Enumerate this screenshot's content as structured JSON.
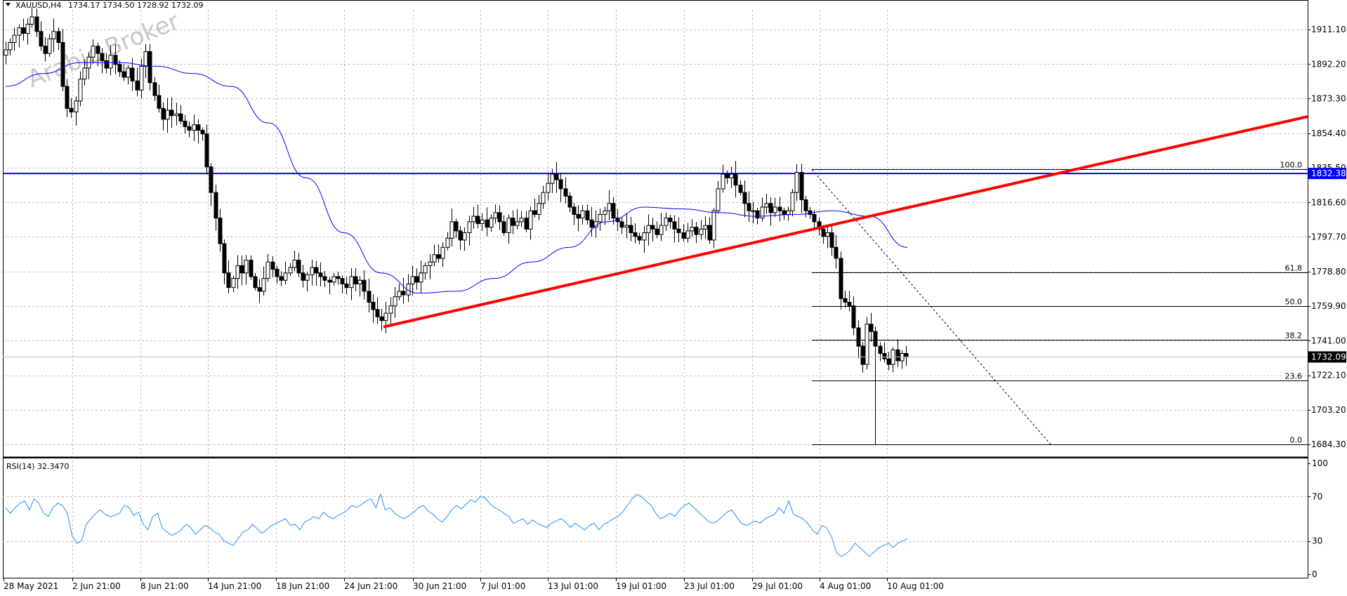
{
  "chart_data": [
    {
      "type": "candlestick",
      "header": {
        "symbol": "XAUUSD,H4",
        "ohlc": "1734.17 1734.50 1728.92 1732.09"
      },
      "watermark": "Arabic Broker",
      "y_ticks": [
        "1911.10",
        "1892.20",
        "1873.30",
        "1854.40",
        "1835.50",
        "1816.60",
        "1797.70",
        "1778.80",
        "1759.90",
        "1741.00",
        "1722.10",
        "1703.20",
        "1684.30"
      ],
      "ylim": [
        1684.3,
        1911.1
      ],
      "x_ticks": [
        "28 May 2021",
        "2 Jun 21:00",
        "8 Jun 21:00",
        "14 Jun 21:00",
        "18 Jun 21:00",
        "24 Jun 21:00",
        "30 Jun 21:00",
        "7 Jul 01:00",
        "13 Jul 01:00",
        "19 Jul 01:00",
        "23 Jul 01:00",
        "29 Jul 01:00",
        "4 Aug 01:00",
        "10 Aug 01:00"
      ],
      "price_closes": [
        1900,
        1904,
        1908,
        1912,
        1909,
        1914,
        1918,
        1910,
        1902,
        1898,
        1906,
        1910,
        1904,
        1880,
        1868,
        1866,
        1872,
        1884,
        1890,
        1896,
        1902,
        1898,
        1894,
        1890,
        1897,
        1892,
        1888,
        1885,
        1890,
        1883,
        1878,
        1891,
        1899,
        1882,
        1875,
        1868,
        1862,
        1867,
        1864,
        1865,
        1861,
        1858,
        1856,
        1859,
        1856,
        1854,
        1836,
        1822,
        1808,
        1794,
        1778,
        1770,
        1775,
        1782,
        1778,
        1785,
        1776,
        1770,
        1768,
        1775,
        1784,
        1780,
        1776,
        1774,
        1778,
        1781,
        1785,
        1778,
        1774,
        1777,
        1781,
        1778,
        1776,
        1774,
        1773,
        1776,
        1775,
        1772,
        1770,
        1776,
        1772,
        1774,
        1768,
        1762,
        1758,
        1754,
        1752,
        1756,
        1760,
        1765,
        1768,
        1766,
        1772,
        1776,
        1773,
        1778,
        1782,
        1784,
        1788,
        1786,
        1792,
        1797,
        1806,
        1801,
        1796,
        1800,
        1806,
        1809,
        1805,
        1807,
        1803,
        1808,
        1811,
        1806,
        1800,
        1808,
        1804,
        1806,
        1808,
        1802,
        1812,
        1810,
        1816,
        1822,
        1827,
        1832,
        1829,
        1824,
        1820,
        1814,
        1810,
        1808,
        1812,
        1807,
        1803,
        1806,
        1810,
        1812,
        1816,
        1808,
        1806,
        1803,
        1804,
        1800,
        1798,
        1796,
        1800,
        1804,
        1802,
        1799,
        1804,
        1808,
        1806,
        1802,
        1800,
        1797,
        1801,
        1803,
        1799,
        1802,
        1804,
        1796,
        1812,
        1824,
        1832,
        1830,
        1832,
        1826,
        1822,
        1816,
        1812,
        1812,
        1808,
        1814,
        1816,
        1811,
        1814,
        1812,
        1810,
        1812,
        1822,
        1833,
        1818,
        1812,
        1810,
        1806,
        1802,
        1798,
        1800,
        1792,
        1786,
        1764,
        1762,
        1760,
        1748,
        1738,
        1728,
        1750,
        1746,
        1738,
        1734,
        1731,
        1728,
        1736,
        1730,
        1734,
        1732
      ],
      "moving_average": {
        "period": 50,
        "anchor_values": [
          1880,
          1887,
          1893,
          1893,
          1891,
          1887,
          1880,
          1860,
          1830,
          1800,
          1778,
          1767,
          1768,
          1775,
          1784,
          1792,
          1806,
          1814,
          1813,
          1811,
          1809,
          1810,
          1812,
          1809,
          1792
        ]
      },
      "horizontal_level": {
        "label": "1832.38",
        "value": 1832.38,
        "color": "#0000ff"
      },
      "current_price": {
        "label": "1732.09",
        "value": 1732.09
      },
      "trendline": {
        "color": "#ff0000",
        "start": {
          "date": "25 Jun 2021",
          "price": 1748.5
        },
        "end": {
          "date": "14 Aug 2021",
          "price": 1863.5
        }
      },
      "fibonacci": {
        "levels": [
          {
            "label": "100.0",
            "value": 1834.6
          },
          {
            "label": "61.8",
            "value": 1778.2
          },
          {
            "label": "50.0",
            "value": 1759.9
          },
          {
            "label": "38.2",
            "value": 1741.5
          },
          {
            "label": "23.6",
            "value": 1719.2
          },
          {
            "label": "0.0",
            "value": 1684.3
          }
        ],
        "diagonal": {
          "from": {
            "date": "4 Aug 2021",
            "price": 1834.6
          },
          "to": {
            "date": "10 Aug 2021",
            "price": 1684.3
          }
        }
      },
      "colors": {
        "bull": "#ffffff",
        "bear": "#000000",
        "grid": "#c0c0c0",
        "ma": "#0000ff"
      }
    },
    {
      "type": "line",
      "title": "RSI(14) 32.3470",
      "y_ticks": [
        "100",
        "70",
        "30",
        "0"
      ],
      "ylim": [
        0,
        100
      ],
      "levels": [
        70,
        30
      ],
      "values": [
        60,
        55,
        60,
        64,
        66,
        58,
        68,
        64,
        55,
        52,
        60,
        64,
        62,
        55,
        35,
        28,
        30,
        45,
        50,
        55,
        58,
        54,
        52,
        53,
        55,
        62,
        60,
        53,
        56,
        45,
        40,
        52,
        55,
        42,
        38,
        35,
        37,
        40,
        45,
        42,
        36,
        40,
        44,
        42,
        38,
        36,
        30,
        28,
        26,
        32,
        38,
        40,
        45,
        41,
        37,
        40,
        44,
        46,
        48,
        50,
        44,
        45,
        40,
        47,
        49,
        52,
        50,
        56,
        52,
        50,
        53,
        55,
        58,
        62,
        60,
        63,
        66,
        68,
        60,
        72,
        58,
        60,
        55,
        52,
        50,
        53,
        56,
        60,
        62,
        57,
        54,
        50,
        47,
        52,
        58,
        62,
        59,
        63,
        67,
        65,
        70,
        69,
        64,
        60,
        58,
        55,
        52,
        46,
        48,
        50,
        45,
        49,
        46,
        44,
        42,
        46,
        48,
        50,
        47,
        42,
        46,
        43,
        40,
        44,
        46,
        40,
        45,
        47,
        50,
        52,
        56,
        62,
        68,
        72,
        70,
        66,
        62,
        55,
        50,
        52,
        55,
        52,
        58,
        62,
        64,
        60,
        56,
        52,
        48,
        46,
        48,
        52,
        56,
        58,
        52,
        46,
        44,
        46,
        48,
        46,
        50,
        52,
        54,
        60,
        55,
        66,
        54,
        52,
        50,
        46,
        40,
        36,
        44,
        42,
        34,
        20,
        16,
        18,
        22,
        28,
        24,
        20,
        16,
        20,
        24,
        26,
        28,
        24,
        28,
        30,
        32
      ]
    }
  ]
}
